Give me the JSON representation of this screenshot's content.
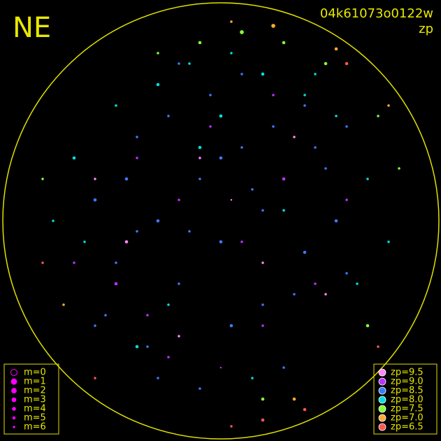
{
  "chart_data": {
    "type": "scatter",
    "corner_label": "NE",
    "title": "04k61073o0122w",
    "subtitle": "zp",
    "xlim": [
      -1,
      1
    ],
    "ylim": [
      -1,
      1
    ],
    "magnitude_legend": [
      "m=0",
      "m=1",
      "m=2",
      "m=3",
      "m=4",
      "m=5",
      "m=6"
    ],
    "series": [
      {
        "name": "zp=9.5",
        "color": "#ff88ff",
        "x": [
          -0.1,
          0.2,
          -0.45,
          0.35,
          -0.2,
          0.05,
          -0.6,
          0.5
        ],
        "values": [
          0.3,
          -0.2,
          -0.1,
          0.4,
          -0.55,
          0.1,
          0.2,
          -0.35
        ],
        "m": [
          5,
          5,
          4,
          5,
          5,
          6,
          5,
          5
        ]
      },
      {
        "name": "zp=9.0",
        "color": "#bb33ff",
        "x": [
          -0.5,
          -0.35,
          -0.2,
          0.1,
          0.3,
          0.45,
          -0.05,
          0.2,
          -0.4,
          0.6,
          -0.7,
          0.0,
          0.25,
          -0.25
        ],
        "values": [
          -0.3,
          -0.45,
          0.1,
          -0.1,
          0.2,
          -0.3,
          0.45,
          -0.5,
          0.3,
          0.1,
          -0.2,
          -0.7,
          0.6,
          -0.65
        ],
        "m": [
          4,
          5,
          5,
          5,
          4,
          5,
          5,
          5,
          5,
          5,
          5,
          6,
          5,
          5
        ]
      },
      {
        "name": "zp=8.5",
        "color": "#3a7cff",
        "x": [
          -0.6,
          -0.5,
          -0.4,
          -0.3,
          -0.2,
          -0.1,
          0.0,
          0.1,
          0.2,
          0.3,
          0.4,
          0.5,
          0.6,
          -0.55,
          -0.45,
          -0.35,
          -0.25,
          -0.15,
          -0.05,
          0.05,
          0.15,
          0.25,
          0.35,
          0.45,
          0.55,
          -0.3,
          -0.1,
          0.1,
          0.3,
          -0.2,
          0.0,
          0.2,
          -0.4,
          0.4,
          -0.6,
          0.6
        ],
        "values": [
          0.1,
          -0.2,
          0.4,
          0.0,
          -0.3,
          0.2,
          -0.1,
          0.35,
          -0.4,
          0.05,
          -0.15,
          0.25,
          -0.25,
          -0.45,
          0.2,
          -0.6,
          0.5,
          -0.05,
          0.6,
          -0.5,
          0.15,
          0.45,
          -0.35,
          0.35,
          0.0,
          -0.75,
          -0.8,
          0.7,
          -0.7,
          0.75,
          0.3,
          0.05,
          -0.05,
          0.55,
          -0.5,
          0.45
        ],
        "m": [
          4,
          5,
          5,
          4,
          5,
          5,
          4,
          5,
          5,
          5,
          4,
          5,
          5,
          5,
          4,
          5,
          5,
          5,
          5,
          4,
          5,
          5,
          5,
          5,
          4,
          5,
          5,
          5,
          5,
          5,
          4,
          5,
          5,
          5,
          5,
          5
        ]
      },
      {
        "name": "zp=8.0",
        "color": "#00e0e0",
        "x": [
          -0.7,
          -0.65,
          -0.5,
          -0.3,
          -0.15,
          0.05,
          0.2,
          0.4,
          0.55,
          0.7,
          -0.4,
          0.15,
          0.3,
          -0.1,
          0.65,
          -0.8,
          0.8,
          0.0,
          -0.25,
          0.45
        ],
        "values": [
          0.3,
          -0.1,
          0.55,
          0.65,
          0.75,
          0.8,
          0.7,
          0.6,
          0.5,
          0.2,
          -0.6,
          -0.75,
          0.05,
          0.35,
          -0.3,
          0.0,
          -0.1,
          0.5,
          -0.4,
          0.7
        ],
        "m": [
          4,
          5,
          5,
          4,
          5,
          5,
          4,
          5,
          5,
          5,
          4,
          5,
          5,
          4,
          5,
          5,
          5,
          4,
          5,
          5
        ]
      },
      {
        "name": "zp=7.5",
        "color": "#88ff33",
        "x": [
          -0.1,
          0.1,
          0.3,
          0.5,
          0.75,
          0.85,
          -0.85,
          0.7,
          0.2,
          -0.3
        ],
        "values": [
          0.85,
          0.9,
          0.85,
          0.75,
          0.5,
          0.25,
          0.2,
          -0.5,
          -0.85,
          0.8
        ],
        "m": [
          4,
          3,
          4,
          4,
          5,
          5,
          5,
          4,
          4,
          5
        ]
      },
      {
        "name": "zp=7.0",
        "color": "#ffaa33",
        "x": [
          0.25,
          0.55,
          -0.75,
          0.8,
          0.35,
          0.05
        ],
        "values": [
          0.93,
          0.82,
          -0.4,
          0.55,
          -0.85,
          0.95
        ],
        "m": [
          3,
          4,
          5,
          5,
          4,
          5
        ]
      },
      {
        "name": "zp=6.5",
        "color": "#ff5555",
        "x": [
          0.6,
          -0.6,
          0.2,
          0.75,
          -0.85,
          0.05,
          0.4
        ],
        "values": [
          0.75,
          -0.75,
          -0.95,
          -0.6,
          -0.2,
          -0.98,
          -0.9
        ],
        "m": [
          4,
          5,
          4,
          5,
          5,
          5,
          4
        ]
      }
    ]
  }
}
